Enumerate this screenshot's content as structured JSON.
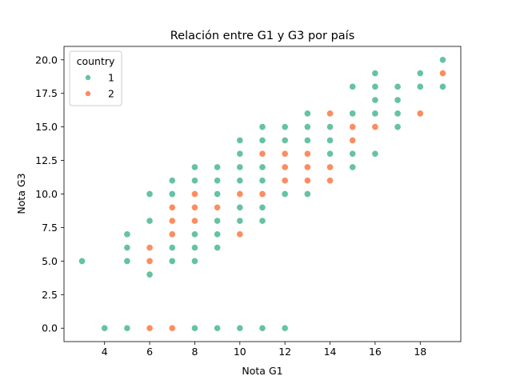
{
  "chart_data": {
    "type": "scatter",
    "title": "Relación entre G1 y G3 por país",
    "xlabel": "Nota G1",
    "ylabel": "Nota G3",
    "xlim": [
      2.2,
      19.8
    ],
    "ylim": [
      -1.0,
      21.0
    ],
    "xticks": [
      4,
      6,
      8,
      10,
      12,
      14,
      16,
      18
    ],
    "yticks": [
      0.0,
      2.5,
      5.0,
      7.5,
      10.0,
      12.5,
      15.0,
      17.5,
      20.0
    ],
    "ytick_labels": [
      "0.0",
      "2.5",
      "5.0",
      "7.5",
      "10.0",
      "12.5",
      "15.0",
      "17.5",
      "20.0"
    ],
    "grid": false,
    "legend": {
      "title": "country",
      "placement": "top-left"
    },
    "series": [
      {
        "name": "1",
        "color": "#66c2a5",
        "points": [
          [
            3,
            5
          ],
          [
            4,
            0
          ],
          [
            5,
            0
          ],
          [
            5,
            5
          ],
          [
            5,
            6
          ],
          [
            5,
            7
          ],
          [
            6,
            4
          ],
          [
            6,
            8
          ],
          [
            6,
            10
          ],
          [
            7,
            5
          ],
          [
            7,
            6
          ],
          [
            7,
            10
          ],
          [
            7,
            11
          ],
          [
            8,
            0
          ],
          [
            8,
            5
          ],
          [
            8,
            6
          ],
          [
            8,
            7
          ],
          [
            8,
            9
          ],
          [
            8,
            11
          ],
          [
            8,
            12
          ],
          [
            9,
            0
          ],
          [
            9,
            6
          ],
          [
            9,
            7
          ],
          [
            9,
            8
          ],
          [
            9,
            10
          ],
          [
            9,
            11
          ],
          [
            9,
            12
          ],
          [
            10,
            0
          ],
          [
            10,
            8
          ],
          [
            10,
            9
          ],
          [
            10,
            11
          ],
          [
            10,
            12
          ],
          [
            10,
            13
          ],
          [
            10,
            14
          ],
          [
            11,
            0
          ],
          [
            11,
            8
          ],
          [
            11,
            9
          ],
          [
            11,
            11
          ],
          [
            11,
            12
          ],
          [
            11,
            14
          ],
          [
            11,
            15
          ],
          [
            12,
            0
          ],
          [
            12,
            10
          ],
          [
            12,
            14
          ],
          [
            12,
            15
          ],
          [
            13,
            10
          ],
          [
            13,
            14
          ],
          [
            13,
            15
          ],
          [
            13,
            16
          ],
          [
            14,
            13
          ],
          [
            14,
            14
          ],
          [
            14,
            15
          ],
          [
            15,
            12
          ],
          [
            15,
            13
          ],
          [
            15,
            16
          ],
          [
            15,
            18
          ],
          [
            16,
            13
          ],
          [
            16,
            16
          ],
          [
            16,
            17
          ],
          [
            16,
            18
          ],
          [
            16,
            19
          ],
          [
            17,
            15
          ],
          [
            17,
            16
          ],
          [
            17,
            17
          ],
          [
            17,
            18
          ],
          [
            18,
            18
          ],
          [
            18,
            19
          ],
          [
            19,
            18
          ],
          [
            19,
            20
          ]
        ]
      },
      {
        "name": "2",
        "color": "#fc8d62",
        "points": [
          [
            6,
            0
          ],
          [
            6,
            5
          ],
          [
            6,
            6
          ],
          [
            7,
            0
          ],
          [
            7,
            7
          ],
          [
            7,
            8
          ],
          [
            7,
            9
          ],
          [
            8,
            8
          ],
          [
            8,
            9
          ],
          [
            8,
            10
          ],
          [
            9,
            9
          ],
          [
            10,
            7
          ],
          [
            10,
            10
          ],
          [
            11,
            10
          ],
          [
            11,
            13
          ],
          [
            12,
            11
          ],
          [
            12,
            12
          ],
          [
            12,
            13
          ],
          [
            13,
            11
          ],
          [
            13,
            12
          ],
          [
            13,
            13
          ],
          [
            14,
            11
          ],
          [
            14,
            12
          ],
          [
            14,
            16
          ],
          [
            15,
            14
          ],
          [
            15,
            15
          ],
          [
            16,
            15
          ],
          [
            18,
            16
          ],
          [
            19,
            19
          ]
        ]
      }
    ]
  }
}
